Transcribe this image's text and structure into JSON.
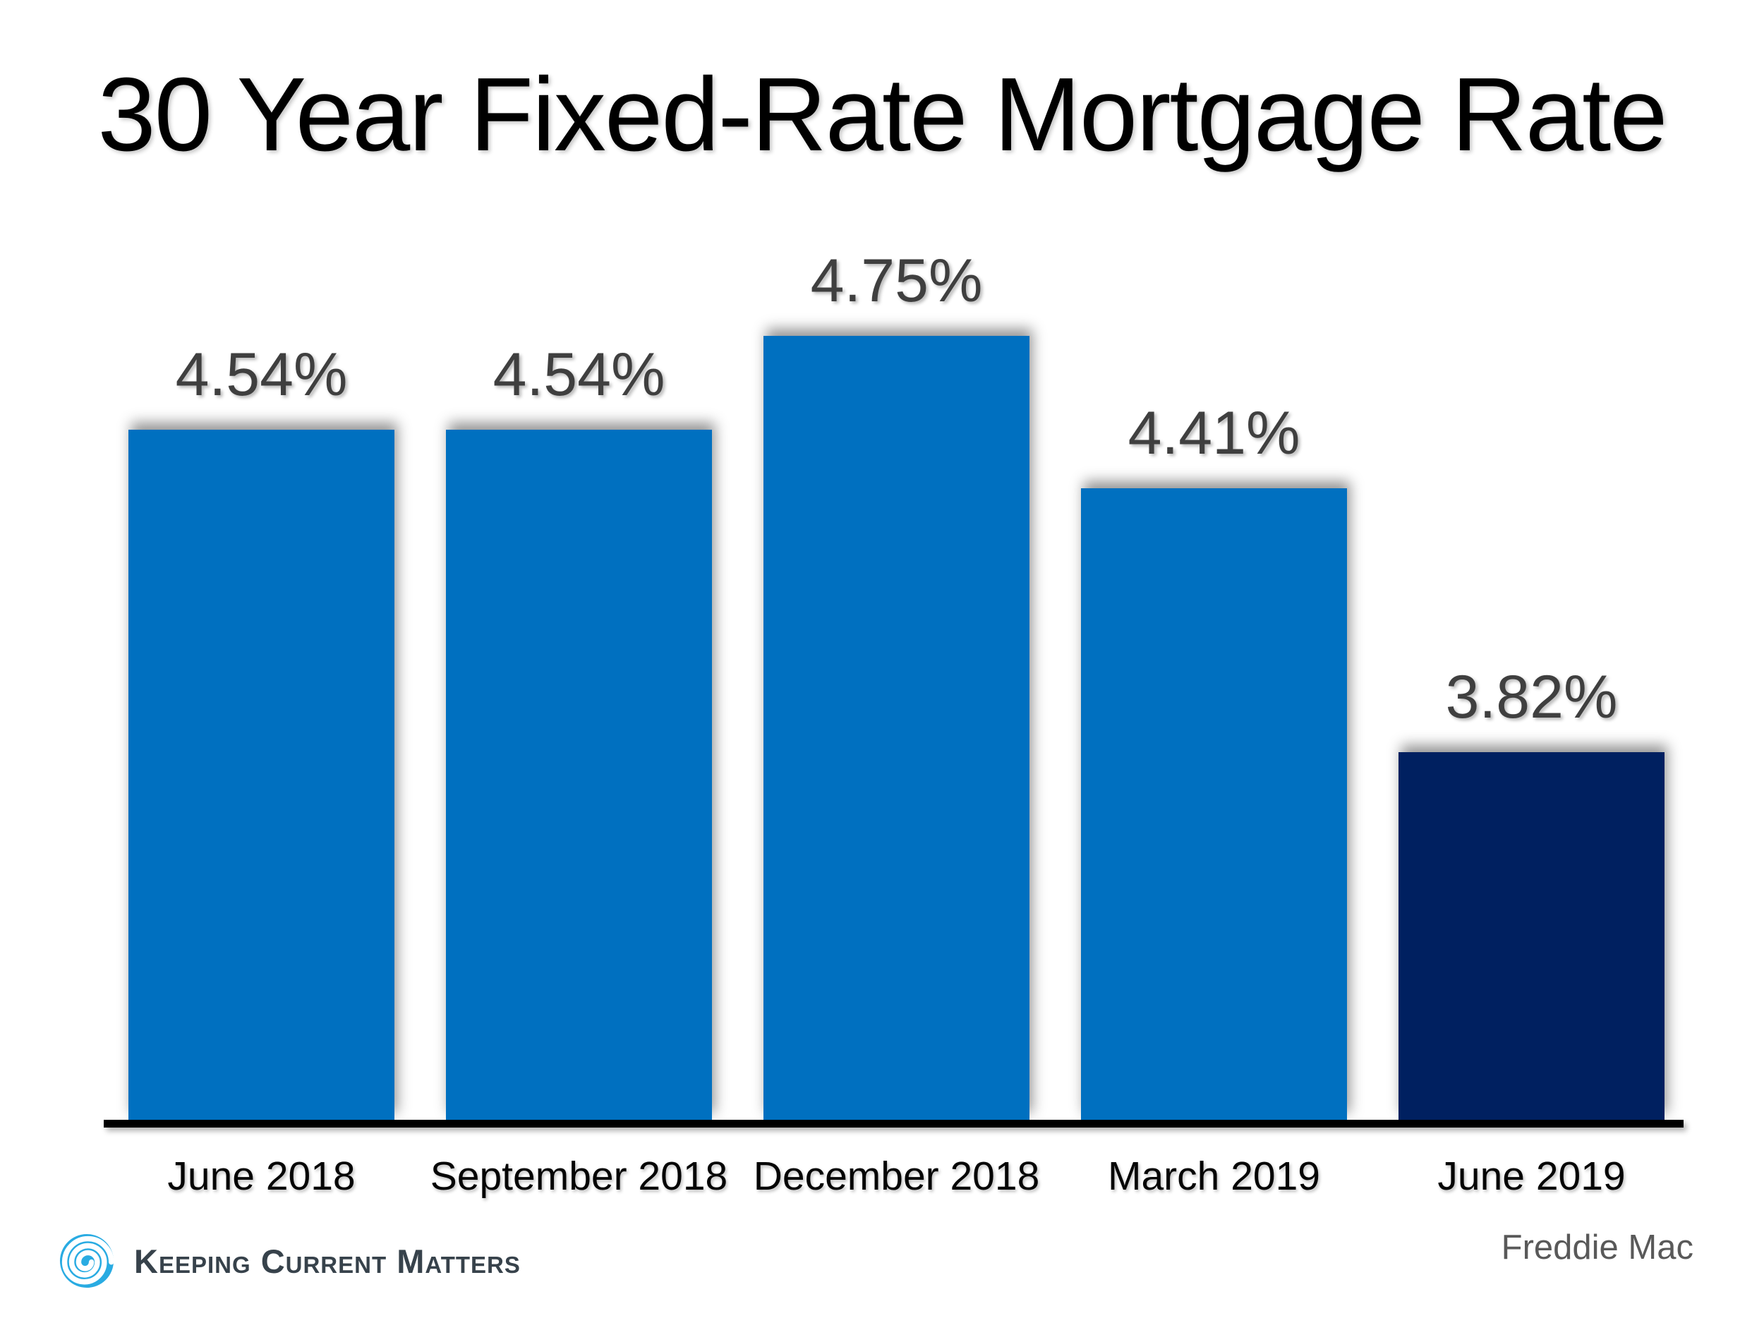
{
  "title": "30 Year Fixed-Rate Mortgage Rate",
  "source": "Freddie Mac",
  "logo": {
    "text": "Keeping Current Matters",
    "icon": "swirl-icon",
    "icon_color": "#29abe2",
    "text_color": "#37424b"
  },
  "colors": {
    "bar_blue": "#0070c0",
    "bar_navy": "#002060",
    "value_label_gray": "#3f3f3f",
    "axis_black": "#000000",
    "source_gray": "#595959",
    "background": "#ffffff"
  },
  "chart_data": {
    "type": "bar",
    "title": "30 Year Fixed-Rate Mortgage Rate",
    "categories": [
      "June 2018",
      "September 2018",
      "December 2018",
      "March 2019",
      "June 2019"
    ],
    "values": [
      4.54,
      4.54,
      4.75,
      4.41,
      3.82
    ],
    "labels": [
      "4.54%",
      "4.54%",
      "4.75%",
      "4.41%",
      "3.82%"
    ],
    "bar_colors": [
      "#0070c0",
      "#0070c0",
      "#0070c0",
      "#0070c0",
      "#002060"
    ],
    "xlabel": "",
    "ylabel": "",
    "ylim": [
      3.0,
      5.0
    ],
    "grid": false,
    "legend": false,
    "value_labels_position": "above",
    "source": "Freddie Mac"
  }
}
